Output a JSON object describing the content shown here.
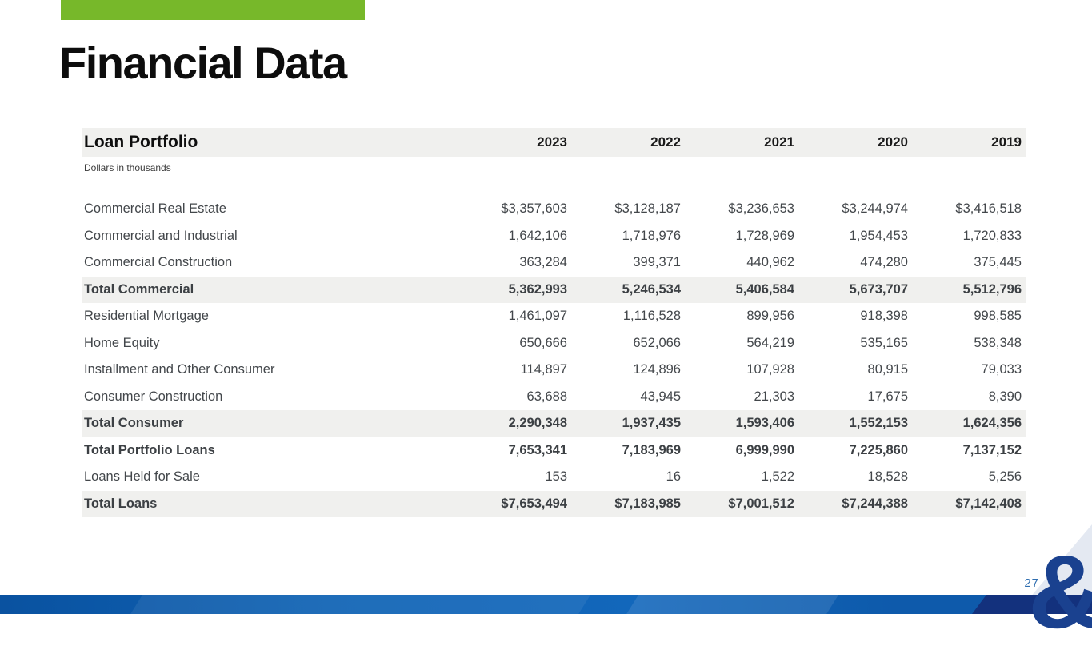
{
  "slide": {
    "title": "Financial Data",
    "page_number": "27",
    "accent_green": "#77b82a",
    "footer_blue": "#0e5aab",
    "logo_glyph": "&"
  },
  "table": {
    "title": "Loan Portfolio",
    "subtitle": "Dollars in thousands",
    "year_headers": [
      "2023",
      "2022",
      "2021",
      "2020",
      "2019"
    ],
    "rows": [
      {
        "label": "Commercial Real Estate",
        "values": [
          "$3,357,603",
          "$3,128,187",
          "$3,236,653",
          "$3,244,974",
          "$3,416,518"
        ],
        "bold": false,
        "shaded": false
      },
      {
        "label": "Commercial and Industrial",
        "values": [
          "1,642,106",
          "1,718,976",
          "1,728,969",
          "1,954,453",
          "1,720,833"
        ],
        "bold": false,
        "shaded": false
      },
      {
        "label": "Commercial Construction",
        "values": [
          "363,284",
          "399,371",
          "440,962",
          "474,280",
          "375,445"
        ],
        "bold": false,
        "shaded": false
      },
      {
        "label": "Total Commercial",
        "values": [
          "5,362,993",
          "5,246,534",
          "5,406,584",
          "5,673,707",
          "5,512,796"
        ],
        "bold": true,
        "shaded": true
      },
      {
        "label": "Residential Mortgage",
        "values": [
          "1,461,097",
          "1,116,528",
          "899,956",
          "918,398",
          "998,585"
        ],
        "bold": false,
        "shaded": false
      },
      {
        "label": "Home Equity",
        "values": [
          "650,666",
          "652,066",
          "564,219",
          "535,165",
          "538,348"
        ],
        "bold": false,
        "shaded": false
      },
      {
        "label": "Installment and Other Consumer",
        "values": [
          "114,897",
          "124,896",
          "107,928",
          "80,915",
          "79,033"
        ],
        "bold": false,
        "shaded": false
      },
      {
        "label": "Consumer Construction",
        "values": [
          "63,688",
          "43,945",
          "21,303",
          "17,675",
          "8,390"
        ],
        "bold": false,
        "shaded": false
      },
      {
        "label": "Total Consumer",
        "values": [
          "2,290,348",
          "1,937,435",
          "1,593,406",
          "1,552,153",
          "1,624,356"
        ],
        "bold": true,
        "shaded": true
      },
      {
        "label": "Total Portfolio Loans",
        "values": [
          "7,653,341",
          "7,183,969",
          "6,999,990",
          "7,225,860",
          "7,137,152"
        ],
        "bold": true,
        "shaded": false
      },
      {
        "label": "Loans Held for Sale",
        "values": [
          "153",
          "16",
          "1,522",
          "18,528",
          "5,256"
        ],
        "bold": false,
        "shaded": false
      },
      {
        "label": "Total Loans",
        "values": [
          "$7,653,494",
          "$7,183,985",
          "$7,001,512",
          "$7,244,388",
          "$7,142,408"
        ],
        "bold": true,
        "shaded": true
      }
    ]
  }
}
